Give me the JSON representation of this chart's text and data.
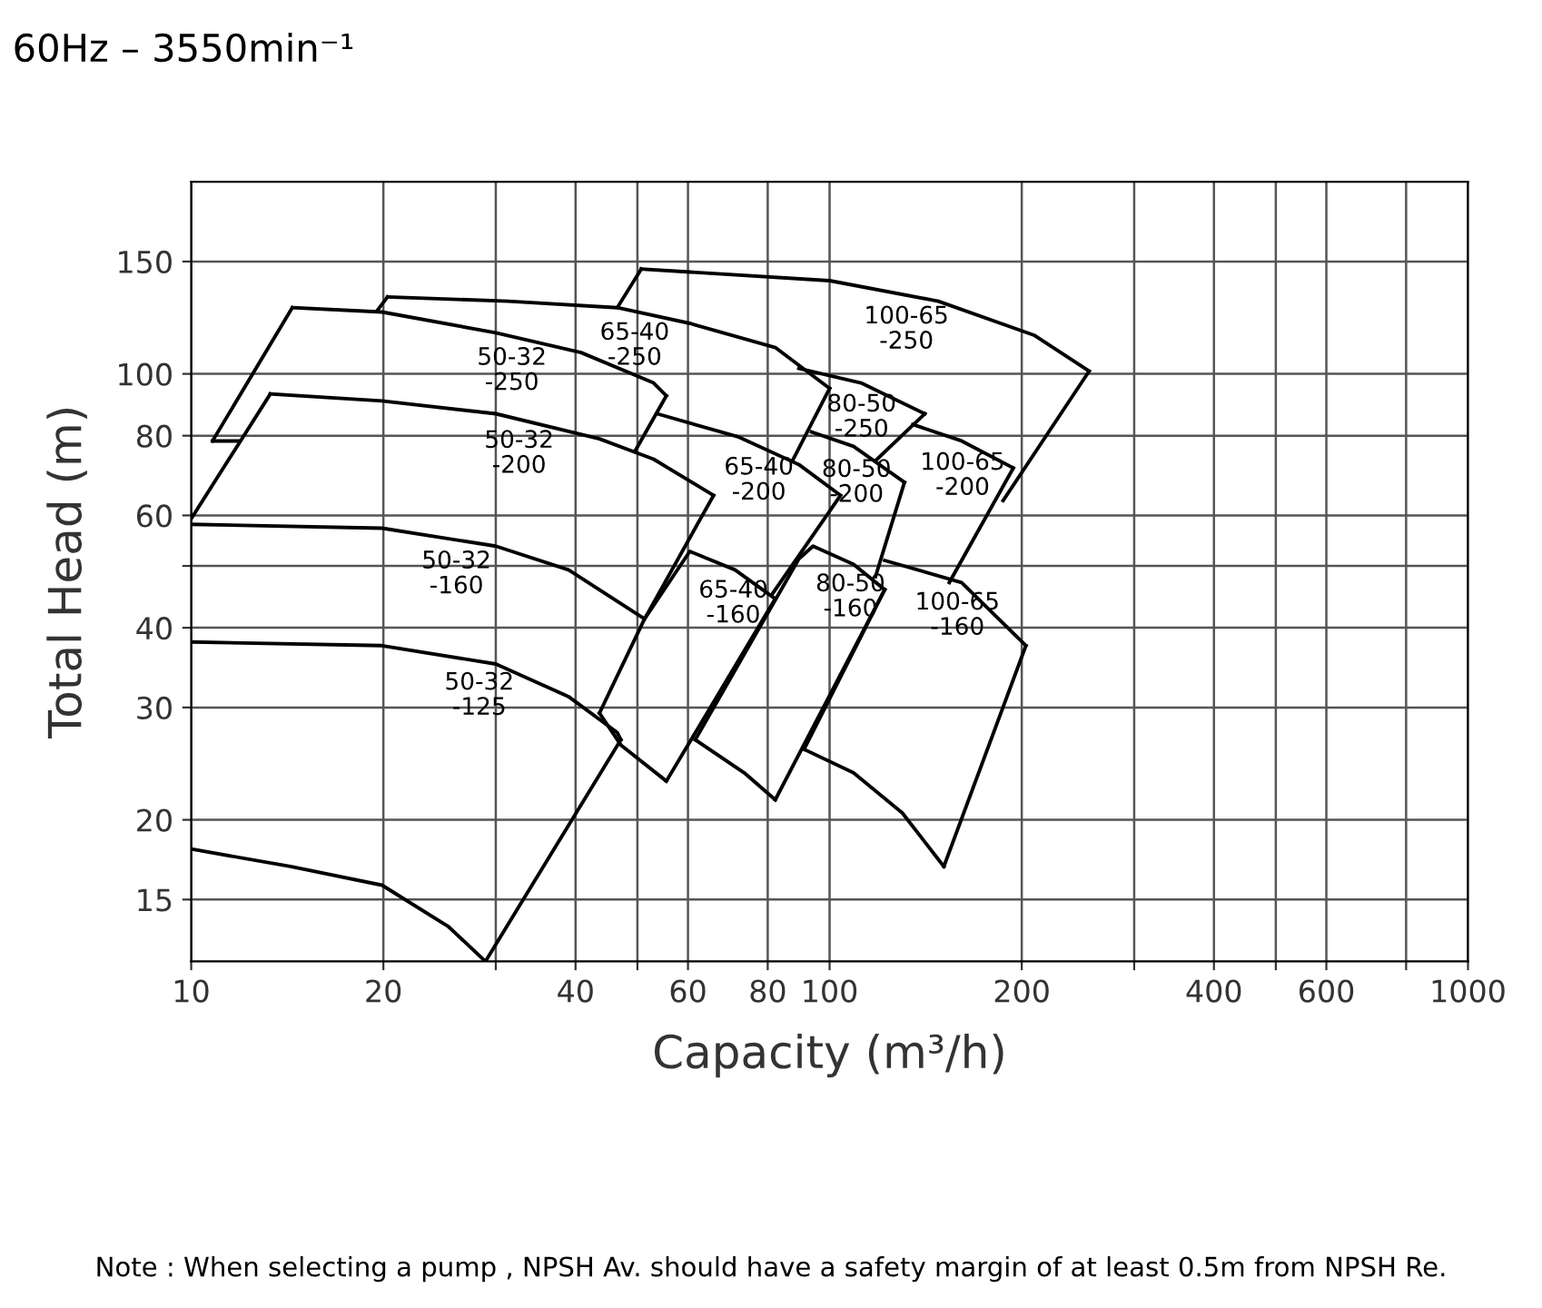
{
  "chart_data": {
    "type": "line",
    "title": "60Hz – 3550min⁻¹",
    "xlabel": "Capacity (m³/h)",
    "ylabel": "Total Head (m)",
    "log": "xy",
    "grid": true,
    "legend": false,
    "marker": "none",
    "line_style": "solid",
    "xlim": [
      10,
      1000
    ],
    "ylim": [
      12,
      200
    ],
    "xticks": [
      10,
      20,
      {
        "value": 30,
        "label": null
      },
      40,
      {
        "value": 50,
        "label": null
      },
      60,
      80,
      100,
      200,
      {
        "value": 300,
        "label": null
      },
      400,
      {
        "value": 500,
        "label": null
      },
      600,
      {
        "value": 800,
        "label": null
      },
      1000
    ],
    "yticks": [
      15,
      20,
      30,
      40,
      {
        "value": 50,
        "label": null
      },
      60,
      80,
      100,
      150
    ],
    "series": [
      {
        "color": "#000000",
        "x": [
          10,
          14.3,
          19.9,
          25.3,
          28.9,
          47.1
        ],
        "values": [
          18,
          16.9,
          15.8,
          13.6,
          12,
          26.7
        ]
      },
      {
        "name": "50-32\n-125",
        "color": "#000000",
        "x": [
          10,
          19.9,
          30,
          39,
          46.5,
          47.1
        ],
        "values": [
          38,
          37.5,
          35.1,
          31.2,
          27.4,
          26.7
        ]
      },
      {
        "name": "50-32\n-160",
        "color": "#000000",
        "x": [
          10,
          19.9,
          30,
          39,
          51.3
        ],
        "values": [
          58.1,
          57.3,
          53.7,
          49.3,
          41.3
        ]
      },
      {
        "color": "#000000",
        "x": [
          10,
          13.3
        ],
        "values": [
          59.3,
          93
        ]
      },
      {
        "name": "50-32\n-200",
        "color": "#000000",
        "x": [
          13.3,
          19.9,
          30,
          43.6,
          53,
          65.8
        ],
        "values": [
          93,
          90.7,
          86.6,
          79.1,
          73.5,
          64.5
        ]
      },
      {
        "color": "#000000",
        "x": [
          51.3,
          65.8
        ],
        "values": [
          41.3,
          64.5
        ]
      },
      {
        "color": "#000000",
        "x": [
          10.8,
          11.9
        ],
        "values": [
          78.5,
          78.5
        ]
      },
      {
        "color": "#000000",
        "x": [
          10.8,
          14.4
        ],
        "values": [
          78.5,
          127
        ]
      },
      {
        "name": "50-32\n-250",
        "color": "#000000",
        "x": [
          14.4,
          19.9,
          30,
          40.8,
          53,
          55.5
        ],
        "values": [
          127,
          125,
          116,
          108,
          96.8,
          92.4
        ]
      },
      {
        "color": "#000000",
        "x": [
          49.7,
          55.5
        ],
        "values": [
          76,
          92.4
        ]
      },
      {
        "color": "#000000",
        "x": [
          19.6,
          20.3
        ],
        "values": [
          126,
          132
        ]
      },
      {
        "name": "65-40\n-250",
        "color": "#000000",
        "x": [
          20.3,
          31.4,
          46.5,
          60.4,
          82.2,
          100
        ],
        "values": [
          132,
          130,
          127,
          120,
          110,
          94.9
        ]
      },
      {
        "color": "#000000",
        "x": [
          87.7,
          100
        ],
        "values": [
          73.5,
          94.9
        ]
      },
      {
        "color": "#000000",
        "x": [
          46.5,
          50.7
        ],
        "values": [
          127,
          146
        ]
      },
      {
        "name": "100-65\n-250",
        "color": "#000000",
        "x": [
          50.7,
          100,
          148,
          209,
          255
        ],
        "values": [
          146,
          140,
          130,
          115,
          101
        ]
      },
      {
        "color": "#000000",
        "x": [
          187,
          255
        ],
        "values": [
          63.3,
          101
        ]
      },
      {
        "name": "80-50\n-250",
        "color": "#000000",
        "x": [
          89.5,
          112,
          141
        ],
        "values": [
          102,
          96.8,
          86.6
        ]
      },
      {
        "color": "#000000",
        "x": [
          118,
          141
        ],
        "values": [
          73.1,
          86.6
        ]
      },
      {
        "name": "65-40\n-200",
        "color": "#000000",
        "x": [
          53.7,
          72.1,
          89.5,
          104
        ],
        "values": [
          86.6,
          79.6,
          72.1,
          64.5
        ]
      },
      {
        "color": "#000000",
        "x": [
          81.1,
          104
        ],
        "values": [
          45,
          64.5
        ]
      },
      {
        "name": "80-50\n-200",
        "color": "#000000",
        "x": [
          93.7,
          109,
          131
        ],
        "values": [
          81.1,
          77,
          67.6
        ]
      },
      {
        "color": "#000000",
        "x": [
          118,
          131
        ],
        "values": [
          48.1,
          67.6
        ]
      },
      {
        "name": "100-65\n-200",
        "color": "#000000",
        "x": [
          135,
          161,
          194
        ],
        "values": [
          83.3,
          78.5,
          71.2
        ]
      },
      {
        "color": "#000000",
        "x": [
          154,
          194
        ],
        "values": [
          47.1,
          71.2
        ]
      },
      {
        "name": "65-40\n-160",
        "color": "#000000",
        "x": [
          43.6,
          51.3,
          60.4,
          71.1,
          82.2
        ],
        "values": [
          29.4,
          41.3,
          52.7,
          49.3,
          44.4
        ]
      },
      {
        "color": "#000000",
        "x": [
          55.5,
          82.2
        ],
        "values": [
          23,
          44.4
        ]
      },
      {
        "color": "#000000",
        "x": [
          43.6,
          47.1,
          55.5
        ],
        "values": [
          29.4,
          26.2,
          23
        ]
      },
      {
        "name": "80-50\n-160",
        "color": "#000000",
        "x": [
          61.6,
          89.5,
          94.2,
          109,
          122
        ],
        "values": [
          26.7,
          51.3,
          53.7,
          50.3,
          45.9
        ]
      },
      {
        "color": "#000000",
        "x": [
          82.2,
          122
        ],
        "values": [
          21.5,
          45.9
        ]
      },
      {
        "color": "#000000",
        "x": [
          61.6,
          73.5,
          82.2
        ],
        "values": [
          26.7,
          23.7,
          21.5
        ]
      },
      {
        "name": "100-65\n-160",
        "color": "#000000",
        "x": [
          122,
          161,
          203
        ],
        "values": [
          51,
          47.1,
          37.5
        ]
      },
      {
        "color": "#000000",
        "x": [
          151,
          203
        ],
        "values": [
          16.9,
          37.5
        ]
      },
      {
        "color": "#000000",
        "x": [
          91.2,
          109,
          130,
          151
        ],
        "values": [
          25.8,
          23.7,
          20.5,
          16.9
        ]
      },
      {
        "color": "#000000",
        "x": [
          91.2,
          122
        ],
        "values": [
          25.8,
          45.9
        ]
      }
    ],
    "annotations": [
      "Note : When selecting a pump , NPSH Av. should have a safety margin of at least 0.5m from NPSH Re."
    ]
  }
}
